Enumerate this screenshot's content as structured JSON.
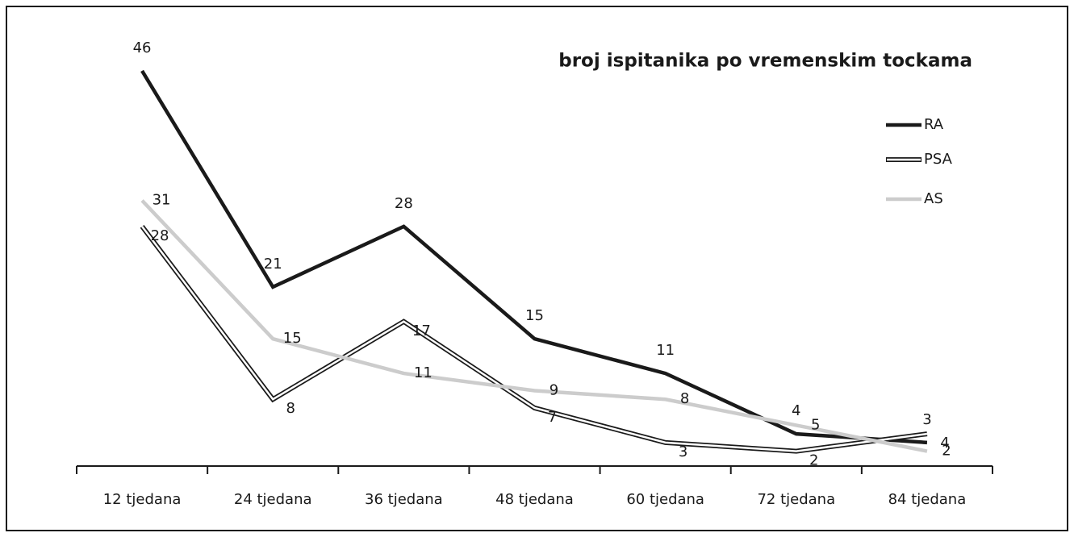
{
  "chart_data": {
    "type": "line",
    "title": "broj ispitanika po vremenskim tockama",
    "categories": [
      "12 tjedana",
      "24 tjedana",
      "36 tjedana",
      "48 tjedana",
      "60 tjedana",
      "72 tjedana",
      "84 tjedana"
    ],
    "series": [
      {
        "name": "RA",
        "color": "#1a1a1a",
        "line_style": "solid",
        "values": [
          46,
          21,
          28,
          15,
          11,
          4,
          3
        ]
      },
      {
        "name": "PSA",
        "color": "#1a1a1a",
        "line_style": "double",
        "values": [
          28,
          8,
          17,
          7,
          3,
          2,
          4
        ]
      },
      {
        "name": "AS",
        "color": "#cccccc",
        "line_style": "solid",
        "values": [
          31,
          15,
          11,
          9,
          8,
          5,
          2
        ]
      }
    ],
    "ylim": [
      0,
      50
    ],
    "legend": "upper right"
  }
}
